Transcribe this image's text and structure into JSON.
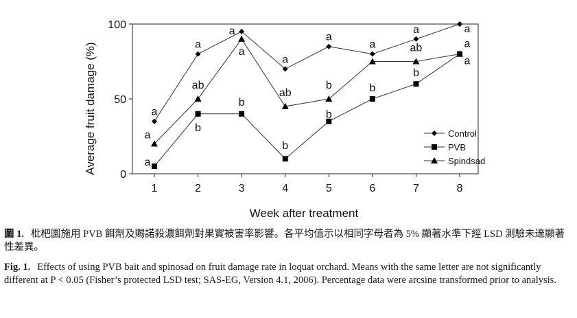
{
  "chart_data": {
    "type": "line",
    "xlabel": "Week after treatment",
    "ylabel": "Average fruit damage (%)",
    "x": [
      1,
      2,
      3,
      4,
      5,
      6,
      7,
      8
    ],
    "ylim": [
      0,
      100
    ],
    "yticks": [
      0,
      50,
      100
    ],
    "grid": false,
    "legend_position": "bottom-right",
    "series": [
      {
        "name": "Control",
        "marker": "diamond",
        "values": [
          35,
          80,
          95,
          70,
          85,
          80,
          90,
          100
        ],
        "letters": [
          "a",
          "a",
          "a",
          "a",
          "a",
          "a",
          "a",
          "a"
        ]
      },
      {
        "name": "PVB",
        "marker": "square",
        "values": [
          5,
          40,
          40,
          10,
          35,
          50,
          60,
          80
        ],
        "letters": [
          "a",
          "b",
          "b",
          "b",
          "b",
          "b",
          "b",
          "a"
        ]
      },
      {
        "name": "Spindsad",
        "marker": "triangle",
        "values": [
          20,
          50,
          90,
          45,
          50,
          75,
          75,
          80
        ],
        "letters": [
          "a",
          "ab",
          "a",
          "ab",
          "b",
          "a",
          "ab",
          "a"
        ]
      }
    ]
  },
  "caption_zh": {
    "label": "圖 1.",
    "text": "枇杷園施用 PVB 餌劑及賜諾殺濃餌劑對果實被害率影響。各平均值示以相同字母者為 5% 顯著水準下經 LSD 測驗未達顯著性差異。"
  },
  "caption_en": {
    "label": "Fig. 1.",
    "text": "Effects of using PVB bait and spinosad on fruit damage rate in loquat orchard. Means with the same letter are not significantly different at P < 0.05 (Fisher’s protected LSD test; SAS-EG, Version 4.1, 2006). Percentage data were arcsine transformed prior to analysis."
  }
}
